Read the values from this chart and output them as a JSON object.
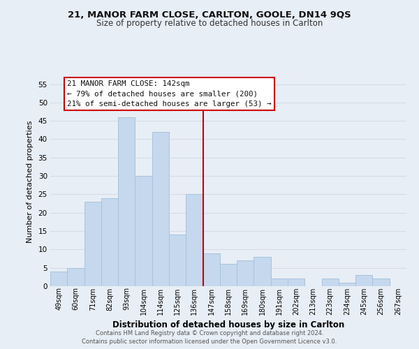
{
  "title1": "21, MANOR FARM CLOSE, CARLTON, GOOLE, DN14 9QS",
  "title2": "Size of property relative to detached houses in Carlton",
  "xlabel": "Distribution of detached houses by size in Carlton",
  "ylabel": "Number of detached properties",
  "bar_labels": [
    "49sqm",
    "60sqm",
    "71sqm",
    "82sqm",
    "93sqm",
    "104sqm",
    "114sqm",
    "125sqm",
    "136sqm",
    "147sqm",
    "158sqm",
    "169sqm",
    "180sqm",
    "191sqm",
    "202sqm",
    "213sqm",
    "223sqm",
    "234sqm",
    "245sqm",
    "256sqm",
    "267sqm"
  ],
  "bar_values": [
    4,
    5,
    23,
    24,
    46,
    30,
    42,
    14,
    25,
    9,
    6,
    7,
    8,
    2,
    2,
    0,
    2,
    1,
    3,
    2,
    0
  ],
  "bar_color": "#c5d8ed",
  "bar_edge_color": "#a8c4de",
  "reference_line_x": 8.5,
  "ylim": [
    0,
    57
  ],
  "yticks": [
    0,
    5,
    10,
    15,
    20,
    25,
    30,
    35,
    40,
    45,
    50,
    55
  ],
  "annotation_title": "21 MANOR FARM CLOSE: 142sqm",
  "annotation_line1": "← 79% of detached houses are smaller (200)",
  "annotation_line2": "21% of semi-detached houses are larger (53) →",
  "annotation_box_color": "#ffffff",
  "annotation_box_edge": "#cc0000",
  "ref_line_color": "#cc0000",
  "grid_color": "#d5dce8",
  "footer1": "Contains HM Land Registry data © Crown copyright and database right 2024.",
  "footer2": "Contains public sector information licensed under the Open Government Licence v3.0.",
  "bg_color": "#e8eef5",
  "title_color": "#111111",
  "subtitle_color": "#333333",
  "footer_color": "#555555"
}
